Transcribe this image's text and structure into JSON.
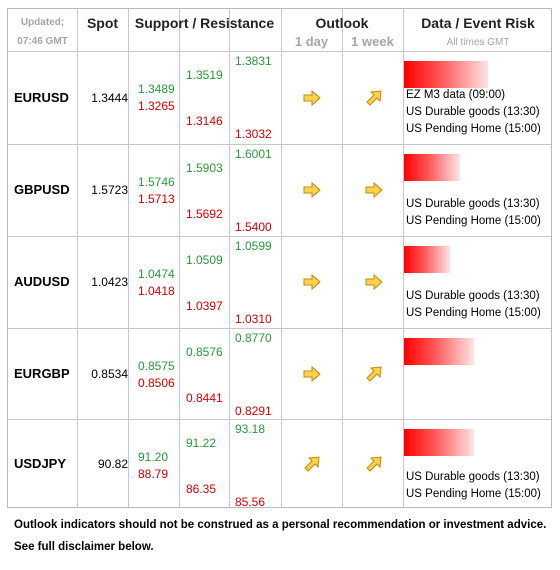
{
  "header": {
    "updated_label": "Updated;",
    "updated_time": "07:46 GMT",
    "spot": "Spot",
    "support_resistance": "Support / Resistance",
    "outlook": "Outlook",
    "outlook_1day": "1 day",
    "outlook_1week": "1 week",
    "data_event_risk": "Data / Event Risk",
    "all_times": "All times GMT"
  },
  "colors": {
    "support": "#2a9a3a",
    "resistance": "#d20000",
    "arrow_fill": "#ffd24d",
    "arrow_stroke": "#c08a00"
  },
  "rows": [
    {
      "pair": "EURUSD",
      "spot": "1.3444",
      "g1": "1.3489",
      "r1": "1.3265",
      "g2": "1.3519",
      "r2": "1.3146",
      "g3": "1.3831",
      "r3": "1.3032",
      "outlook_1day": "right",
      "outlook_1week": "up-right",
      "event_risk_fraction": 0.6,
      "events": [
        "EZ M3 data (09:00)",
        "US Durable goods (13:30)",
        "US Pending Home (15:00)"
      ]
    },
    {
      "pair": "GBPUSD",
      "spot": "1.5723",
      "g1": "1.5746",
      "r1": "1.5713",
      "g2": "1.5903",
      "r2": "1.5692",
      "g3": "1.6001",
      "r3": "1.5400",
      "outlook_1day": "right",
      "outlook_1week": "right",
      "event_risk_fraction": 0.4,
      "events": [
        "US Durable goods (13:30)",
        "US Pending Home (15:00)"
      ]
    },
    {
      "pair": "AUDUSD",
      "spot": "1.0423",
      "g1": "1.0474",
      "r1": "1.0418",
      "g2": "1.0509",
      "r2": "1.0397",
      "g3": "1.0599",
      "r3": "1.0310",
      "outlook_1day": "right",
      "outlook_1week": "right",
      "event_risk_fraction": 0.33,
      "events": [
        "US Durable goods (13:30)",
        "US Pending Home (15:00)"
      ]
    },
    {
      "pair": "EURGBP",
      "spot": "0.8534",
      "g1": "0.8575",
      "r1": "0.8506",
      "g2": "0.8576",
      "r2": "0.8441",
      "g3": "0.8770",
      "r3": "0.8291",
      "outlook_1day": "right",
      "outlook_1week": "up-right",
      "event_risk_fraction": 0.5,
      "events": []
    },
    {
      "pair": "USDJPY",
      "spot": "90.82",
      "g1": "91.20",
      "r1": "88.79",
      "g2": "91.22",
      "r2": "86.35",
      "g3": "93.18",
      "r3": "85.56",
      "outlook_1day": "up-right",
      "outlook_1week": "up-right",
      "event_risk_fraction": 0.5,
      "events": [
        "US Durable goods (13:30)",
        "US Pending Home (15:00)"
      ]
    }
  ],
  "footer": {
    "line1": "Outlook indicators should not be construed as a personal recommendation or investment advice.",
    "line2": "See full disclaimer below."
  }
}
